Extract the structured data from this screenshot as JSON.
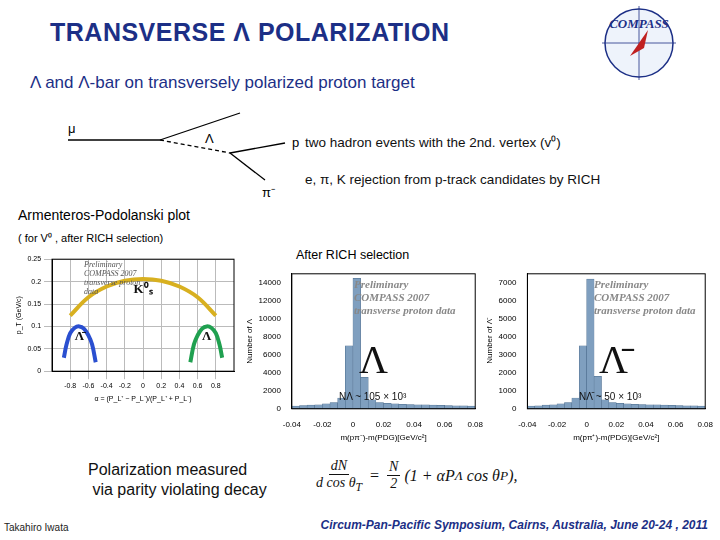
{
  "header": {
    "title": "TRANSVERSE Λ POLARIZATION",
    "logo": "COMPASS",
    "subtitle": "Λ and Λ-bar on transversely polarized proton target"
  },
  "diagram": {
    "labels": [
      "μ",
      "Λ",
      "p",
      "π⁻"
    ]
  },
  "notes": [
    "two hadron events with the 2nd. vertex (v⁰)",
    "e, π, K rejection from p-track candidates by RICH"
  ],
  "armenteros_heading": "Armenteros-Podolanski plot",
  "armenteros_note": "( for V⁰ , after RICH selection)",
  "rich_heading": "After RICH selection",
  "chart_data": [
    {
      "type": "line",
      "x_label": "α = (P_L⁺ − P_L⁻)/(P_L⁺ + P_L⁻)",
      "y_label": "p_T (GeV/c)",
      "xlim": [
        -1,
        1
      ],
      "xticks": [
        -0.8,
        -0.6,
        -0.4,
        -0.2,
        0,
        0.2,
        0.4,
        0.6,
        0.8
      ],
      "ylim": [
        0,
        0.25
      ],
      "yticks": [
        0,
        0.05,
        0.1,
        0.15,
        0.2,
        0.25
      ],
      "grid": true,
      "annotations": [
        "Preliminary COMPASS 2007 transverse proton data"
      ],
      "series": [
        {
          "name": "K⁰ₛ",
          "color": "#d8b020",
          "x": [
            -0.8,
            -0.6,
            -0.4,
            -0.2,
            0,
            0.2,
            0.4,
            0.6,
            0.8
          ],
          "values": [
            0.124,
            0.165,
            0.189,
            0.202,
            0.206,
            0.202,
            0.189,
            0.165,
            0.124
          ]
        },
        {
          "name": "Λ̄",
          "color": "#2a4fd0",
          "x": [
            -0.87,
            -0.84,
            -0.8,
            -0.75,
            -0.7,
            -0.65,
            -0.6,
            -0.56,
            -0.52
          ],
          "values": [
            0.03,
            0.06,
            0.085,
            0.097,
            0.1,
            0.095,
            0.08,
            0.06,
            0.02
          ]
        },
        {
          "name": "Λ",
          "color": "#20a050",
          "x": [
            0.52,
            0.56,
            0.6,
            0.65,
            0.7,
            0.75,
            0.8,
            0.84,
            0.87
          ],
          "values": [
            0.02,
            0.06,
            0.08,
            0.095,
            0.1,
            0.097,
            0.085,
            0.06,
            0.03
          ]
        }
      ]
    },
    {
      "type": "histogram",
      "x_label": "m(pπ⁻)-m(PDG)[GeV/c²]",
      "y_label": "Number of Λ",
      "color": "#7f9fbf",
      "bins": [
        -0.04,
        -0.035,
        -0.03,
        -0.025,
        -0.02,
        -0.015,
        -0.01,
        -0.005,
        0,
        0.005,
        0.01,
        0.015,
        0.02,
        0.025,
        0.03,
        0.035,
        0.04,
        0.045,
        0.05,
        0.055,
        0.06,
        0.065,
        0.07,
        0.075,
        0.08
      ],
      "counts": [
        300,
        350,
        400,
        450,
        550,
        700,
        1200,
        7000,
        14500,
        3500,
        1000,
        700,
        600,
        550,
        500,
        480,
        450,
        430,
        400,
        380,
        360,
        340,
        320,
        300
      ],
      "xlim": [
        -0.04,
        0.08
      ],
      "xticks": [
        -0.04,
        -0.02,
        0,
        0.02,
        0.04,
        0.06,
        0.08
      ],
      "ylim": [
        0,
        15000
      ],
      "yticks": [
        0,
        2000,
        4000,
        6000,
        8000,
        10000,
        12000,
        14000
      ],
      "grid": false,
      "annotations": [
        "Preliminary",
        "COMPASS 2007",
        "transverse proton data",
        "Λ",
        "NΛ ~ 105 × 10³"
      ]
    },
    {
      "type": "histogram",
      "x_label": "m(p̄π⁺)-m(PDG)[GeV/c²]",
      "y_label": "Number of Λ̄",
      "color": "#7f9fbf",
      "bins": [
        -0.04,
        -0.035,
        -0.03,
        -0.025,
        -0.02,
        -0.015,
        -0.01,
        -0.005,
        0,
        0.005,
        0.01,
        0.015,
        0.02,
        0.025,
        0.03,
        0.035,
        0.04,
        0.045,
        0.05,
        0.055,
        0.06,
        0.065,
        0.07,
        0.075,
        0.08
      ],
      "counts": [
        150,
        170,
        200,
        220,
        270,
        350,
        600,
        3500,
        7200,
        1800,
        500,
        350,
        300,
        270,
        250,
        240,
        225,
        215,
        200,
        190,
        180,
        170,
        160,
        150
      ],
      "xlim": [
        -0.04,
        0.08
      ],
      "xticks": [
        -0.04,
        -0.02,
        0,
        0.02,
        0.04,
        0.06,
        0.08
      ],
      "ylim": [
        0,
        7500
      ],
      "yticks": [
        0,
        1000,
        2000,
        3000,
        4000,
        5000,
        6000,
        7000
      ],
      "grid": false,
      "annotations": [
        "Preliminary",
        "COMPASS 2007",
        "transverse proton data",
        "Λ̄",
        "NΛ̄ ~ 50 × 10³"
      ]
    }
  ],
  "polarization": [
    "Polarization measured",
    " via parity violating decay"
  ],
  "formula": {
    "numerator": "dN",
    "denominator": "d cos θ",
    "denominator_sub": "T",
    "equals": "=",
    "n_numerator": "N",
    "n_denominator": "2",
    "rest": "(1 + α",
    "p": "P",
    "p_sub": "Λ",
    "cos": " cos θ",
    "cos_sub": "P",
    "end": "),"
  },
  "footer": {
    "author": "Takahiro Iwata",
    "event": "Circum-Pan-Pacific Symposium, Cairns, Australia, June 20-24 , 2011"
  }
}
